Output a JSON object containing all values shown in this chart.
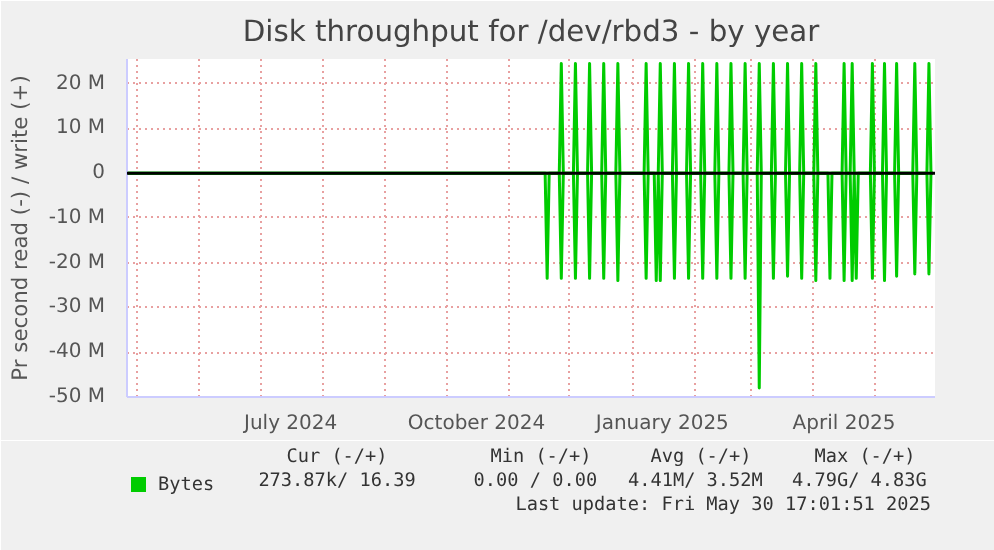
{
  "chart_data": {
    "type": "line",
    "title": "Disk throughput for /dev/rbd3 - by year",
    "ylabel": "Pr second read (-) / write (+)",
    "xlim": [
      "2024-04-26",
      "2025-05-31"
    ],
    "ylim": [
      -50,
      25.5
    ],
    "yticks": [
      {
        "value": -50,
        "label": "-50 M"
      },
      {
        "value": -40,
        "label": "-40 M"
      },
      {
        "value": -30,
        "label": "-30 M"
      },
      {
        "value": -20,
        "label": "-20 M"
      },
      {
        "value": -10,
        "label": "-10 M"
      },
      0,
      {
        "value": 10,
        "label": "10 M"
      },
      {
        "value": 20,
        "label": "20 M"
      }
    ],
    "xticks": [
      {
        "value": "2024-05-01",
        "label": null
      },
      {
        "value": "2024-06-01",
        "label": null
      },
      {
        "value": "2024-07-01",
        "label": null
      },
      {
        "value": "2024-07-16",
        "label": "July 2024"
      },
      {
        "value": "2024-08-01",
        "label": null
      },
      {
        "value": "2024-09-01",
        "label": null
      },
      {
        "value": "2024-10-01",
        "label": null
      },
      {
        "value": "2024-10-16",
        "label": "October 2024"
      },
      {
        "value": "2024-11-01",
        "label": null
      },
      {
        "value": "2024-12-01",
        "label": null
      },
      {
        "value": "2025-01-01",
        "label": null
      },
      {
        "value": "2025-01-16",
        "label": "January 2025"
      },
      {
        "value": "2025-02-01",
        "label": null
      },
      {
        "value": "2025-03-01",
        "label": null
      },
      {
        "value": "2025-04-01",
        "label": null
      },
      {
        "value": "2025-04-16",
        "label": "April 2025"
      },
      {
        "value": "2025-05-01",
        "label": null
      }
    ],
    "grid": true,
    "legend": "bottom",
    "marker": "none",
    "line_style": "solid",
    "ref_lines": [
      {
        "axis": "y",
        "value": 0,
        "color": "#000000"
      }
    ],
    "annotations": [
      "Cur (-/+)",
      "Min (-/+)",
      "Avg (-/+)",
      "Max (-/+)",
      "273.87k/ 16.39",
      "0.00 /  0.00",
      "4.41M/  3.52M",
      "4.79G/  4.83G",
      "Last update: Fri May 30 17:01:51 2025"
    ],
    "series": [
      {
        "name": "Bytes",
        "color": "#00cc00",
        "x": [
          "2024-04-26",
          "2024-11-19",
          "2024-11-20",
          "2024-11-21",
          "2024-11-26",
          "2024-11-27",
          "2024-11-28",
          "2024-12-03",
          "2024-12-04",
          "2024-12-05",
          "2024-12-10",
          "2024-12-11",
          "2024-12-12",
          "2024-12-17",
          "2024-12-18",
          "2024-12-19",
          "2024-12-24",
          "2024-12-25",
          "2024-12-26",
          "2025-01-07",
          "2025-01-08",
          "2025-01-09",
          "2025-01-12",
          "2025-01-13",
          "2025-01-14",
          "2025-01-14",
          "2025-01-15",
          "2025-01-16",
          "2025-01-21",
          "2025-01-22",
          "2025-01-23",
          "2025-01-28",
          "2025-01-29",
          "2025-01-30",
          "2025-02-04",
          "2025-02-05",
          "2025-02-06",
          "2025-02-11",
          "2025-02-12",
          "2025-02-13",
          "2025-02-18",
          "2025-02-19",
          "2025-02-20",
          "2025-02-25",
          "2025-02-26",
          "2025-02-27",
          "2025-03-04",
          "2025-03-05",
          "2025-03-06",
          "2025-03-11",
          "2025-03-12",
          "2025-03-13",
          "2025-03-18",
          "2025-03-19",
          "2025-03-20",
          "2025-03-25",
          "2025-03-26",
          "2025-03-27",
          "2025-04-01",
          "2025-04-02",
          "2025-04-03",
          "2025-04-08",
          "2025-04-09",
          "2025-04-10",
          "2025-04-15",
          "2025-04-16",
          "2025-04-17",
          "2025-04-19",
          "2025-04-20",
          "2025-04-21",
          "2025-04-21",
          "2025-04-22",
          "2025-04-23",
          "2025-04-29",
          "2025-04-30",
          "2025-05-01",
          "2025-05-05",
          "2025-05-06",
          "2025-05-07",
          "2025-05-11",
          "2025-05-12",
          "2025-05-13",
          "2025-05-20",
          "2025-05-21",
          "2025-05-22",
          "2025-05-27",
          "2025-05-28",
          "2025-05-29",
          "2025-05-30"
        ],
        "values": [
          0,
          0,
          -23.5,
          0,
          0,
          -23.5,
          0,
          0,
          -23.5,
          0,
          0,
          -23.5,
          0,
          0,
          -23.5,
          0,
          0,
          -24,
          0,
          0,
          -23.5,
          0,
          0,
          -24,
          0,
          0,
          -24,
          0,
          0,
          -23.5,
          0,
          0,
          -23.5,
          0,
          0,
          -23.5,
          0,
          0,
          -23.5,
          0,
          0,
          -23.5,
          0,
          0,
          -23.5,
          0,
          0,
          -48,
          0,
          0,
          -23.5,
          0,
          0,
          -23,
          0,
          0,
          -23.5,
          0,
          0,
          -24,
          0,
          0,
          -23.5,
          0,
          0,
          -24,
          0,
          0,
          -24,
          0,
          0,
          -23.5,
          0,
          0,
          -23.5,
          0,
          0,
          -24,
          0,
          0,
          -23,
          0,
          0,
          -22.5,
          0,
          0,
          -22.5,
          0,
          0
        ]
      },
      {
        "color": "#00cc00",
        "x": [
          "2024-04-26",
          "2024-11-26",
          "2024-11-27",
          "2024-11-28",
          "2024-12-03",
          "2024-12-04",
          "2024-12-05",
          "2024-12-10",
          "2024-12-11",
          "2024-12-12",
          "2024-12-17",
          "2024-12-18",
          "2024-12-19",
          "2024-12-24",
          "2024-12-25",
          "2024-12-26",
          "2025-01-07",
          "2025-01-08",
          "2025-01-09",
          "2025-01-14",
          "2025-01-15",
          "2025-01-16",
          "2025-01-21",
          "2025-01-22",
          "2025-01-23",
          "2025-01-28",
          "2025-01-29",
          "2025-01-30",
          "2025-02-04",
          "2025-02-05",
          "2025-02-06",
          "2025-02-11",
          "2025-02-12",
          "2025-02-13",
          "2025-02-18",
          "2025-02-19",
          "2025-02-20",
          "2025-02-25",
          "2025-02-26",
          "2025-02-27",
          "2025-03-04",
          "2025-03-05",
          "2025-03-06",
          "2025-03-11",
          "2025-03-12",
          "2025-03-13",
          "2025-03-18",
          "2025-03-19",
          "2025-03-20",
          "2025-03-25",
          "2025-03-26",
          "2025-03-27",
          "2025-04-01",
          "2025-04-02",
          "2025-04-03",
          "2025-04-15",
          "2025-04-16",
          "2025-04-17",
          "2025-04-19",
          "2025-04-20",
          "2025-04-21",
          "2025-04-29",
          "2025-04-30",
          "2025-05-01",
          "2025-05-05",
          "2025-05-06",
          "2025-05-07",
          "2025-05-11",
          "2025-05-12",
          "2025-05-13",
          "2025-05-20",
          "2025-05-21",
          "2025-05-22",
          "2025-05-27",
          "2025-05-28",
          "2025-05-29",
          "2025-05-30"
        ],
        "values": [
          0,
          0,
          24.5,
          0,
          0,
          24.5,
          0,
          0,
          24.5,
          0,
          0,
          24.5,
          0,
          0,
          24.5,
          0,
          0,
          24.5,
          0,
          0,
          24.5,
          0,
          0,
          24.5,
          0,
          0,
          24.5,
          0,
          0,
          24.5,
          0,
          0,
          24.5,
          0,
          0,
          24.5,
          0,
          0,
          24.5,
          0,
          0,
          24.5,
          0,
          0,
          24.5,
          0,
          0,
          24.5,
          0,
          0,
          24.5,
          0,
          0,
          24.5,
          0,
          0,
          24.5,
          0,
          0,
          24.5,
          0,
          0,
          24.5,
          0,
          0,
          24.5,
          0,
          0,
          24.5,
          0,
          0,
          24.5,
          0,
          0,
          24.5,
          0,
          0
        ]
      }
    ]
  }
}
